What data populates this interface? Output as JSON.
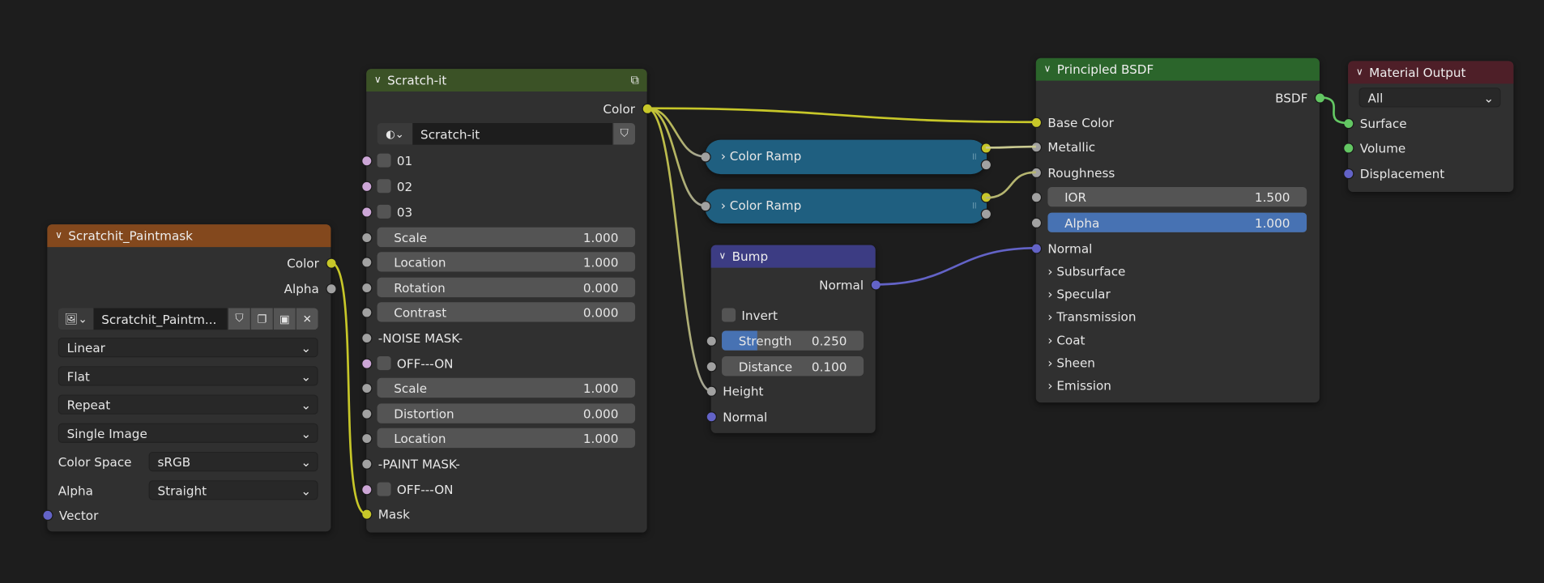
{
  "colors": {
    "background": "#1d1d1d",
    "node_body": "#303030",
    "socket_color": "#c7c729",
    "socket_float": "#a1a1a1",
    "socket_vector": "#6363c7",
    "socket_shader": "#63c763",
    "socket_bool": "#cca6d6",
    "slider_fill": "#4772b3"
  },
  "nodes": {
    "paintmask": {
      "title": "Scratchit_Paintmask",
      "header_color": "#83481d",
      "rows": [
        {
          "type": "out",
          "label": "Color",
          "socket": "color"
        },
        {
          "type": "out",
          "label": "Alpha",
          "socket": "float"
        },
        {
          "type": "datablock",
          "icon": "image-icon",
          "label": "Scratchit_Paintm...",
          "buttons": [
            "shield-icon",
            "duplicate-icon",
            "pack-icon",
            "close-icon"
          ]
        },
        {
          "type": "select",
          "value": "Linear"
        },
        {
          "type": "select",
          "value": "Flat"
        },
        {
          "type": "select",
          "value": "Repeat"
        },
        {
          "type": "select",
          "value": "Single Image"
        },
        {
          "type": "select",
          "label": "Color Space",
          "value": "sRGB"
        },
        {
          "type": "select",
          "label": "Alpha",
          "value": "Straight"
        },
        {
          "type": "in",
          "label": "Vector",
          "socket": "vector"
        }
      ]
    },
    "scratchit": {
      "title": "Scratch-it",
      "header_color": "#3b5226",
      "header_icon": "node-group-icon",
      "rows": [
        {
          "type": "out",
          "label": "Color",
          "socket": "color"
        },
        {
          "type": "datablock",
          "icon": "node-tree-icon",
          "label": "Scratch-it",
          "buttons": [
            "shield-icon"
          ]
        },
        {
          "type": "check",
          "label": "01",
          "socket": "bool"
        },
        {
          "type": "check",
          "label": "02",
          "socket": "bool"
        },
        {
          "type": "check",
          "label": "03",
          "socket": "bool"
        },
        {
          "type": "slider",
          "label": "Scale",
          "value": "1.000",
          "socket": "float"
        },
        {
          "type": "slider",
          "label": "Location",
          "value": "1.000",
          "socket": "float"
        },
        {
          "type": "slider",
          "label": "Rotation",
          "value": "0.000",
          "socket": "float"
        },
        {
          "type": "slider",
          "label": "Contrast",
          "value": "0.000",
          "socket": "float"
        },
        {
          "type": "in",
          "label": "-NOISE MASK-",
          "socket": "float"
        },
        {
          "type": "check",
          "label": "OFF---ON",
          "socket": "bool"
        },
        {
          "type": "slider",
          "label": "Scale",
          "value": "1.000",
          "socket": "float"
        },
        {
          "type": "slider",
          "label": "Distortion",
          "value": "0.000",
          "socket": "float"
        },
        {
          "type": "slider",
          "label": "Location",
          "value": "1.000",
          "socket": "float"
        },
        {
          "type": "in",
          "label": "-PAINT MASK-",
          "socket": "float"
        },
        {
          "type": "check",
          "label": "OFF---ON",
          "socket": "bool"
        },
        {
          "type": "in",
          "label": "Mask",
          "socket": "color"
        }
      ]
    },
    "bump": {
      "title": "Bump",
      "header_color": "#3c3c83",
      "rows": [
        {
          "type": "out",
          "label": "Normal",
          "socket": "vector"
        },
        {
          "type": "check",
          "label": "Invert"
        },
        {
          "type": "slider",
          "label": "Strength",
          "value": "0.250",
          "fill": 0.25,
          "socket": "float"
        },
        {
          "type": "slider",
          "label": "Distance",
          "value": "0.100",
          "socket": "float"
        },
        {
          "type": "in",
          "label": "Height",
          "socket": "float"
        },
        {
          "type": "in",
          "label": "Normal",
          "socket": "vector"
        }
      ]
    },
    "principled": {
      "title": "Principled BSDF",
      "header_color": "#2b652b",
      "rows": [
        {
          "type": "out",
          "label": "BSDF",
          "socket": "shader"
        },
        {
          "type": "in",
          "label": "Base Color",
          "socket": "color"
        },
        {
          "type": "in",
          "label": "Metallic",
          "socket": "float"
        },
        {
          "type": "in",
          "label": "Roughness",
          "socket": "float"
        },
        {
          "type": "slider",
          "label": "IOR",
          "value": "1.500",
          "socket": "float"
        },
        {
          "type": "slider",
          "label": "Alpha",
          "value": "1.000",
          "fill": 1,
          "socket": "float"
        },
        {
          "type": "in",
          "label": "Normal",
          "socket": "vector"
        },
        {
          "type": "panel",
          "label": "Subsurface"
        },
        {
          "type": "panel",
          "label": "Specular"
        },
        {
          "type": "panel",
          "label": "Transmission"
        },
        {
          "type": "panel",
          "label": "Coat"
        },
        {
          "type": "panel",
          "label": "Sheen"
        },
        {
          "type": "panel",
          "label": "Emission"
        }
      ]
    },
    "output": {
      "title": "Material Output",
      "header_color": "#4e1f28",
      "rows": [
        {
          "type": "select",
          "value": "All"
        },
        {
          "type": "in",
          "label": "Surface",
          "socket": "shader"
        },
        {
          "type": "in",
          "label": "Volume",
          "socket": "shader"
        },
        {
          "type": "in",
          "label": "Displacement",
          "socket": "vector"
        }
      ]
    }
  },
  "ramps": [
    {
      "label": "Color Ramp"
    },
    {
      "label": "Color Ramp"
    }
  ]
}
